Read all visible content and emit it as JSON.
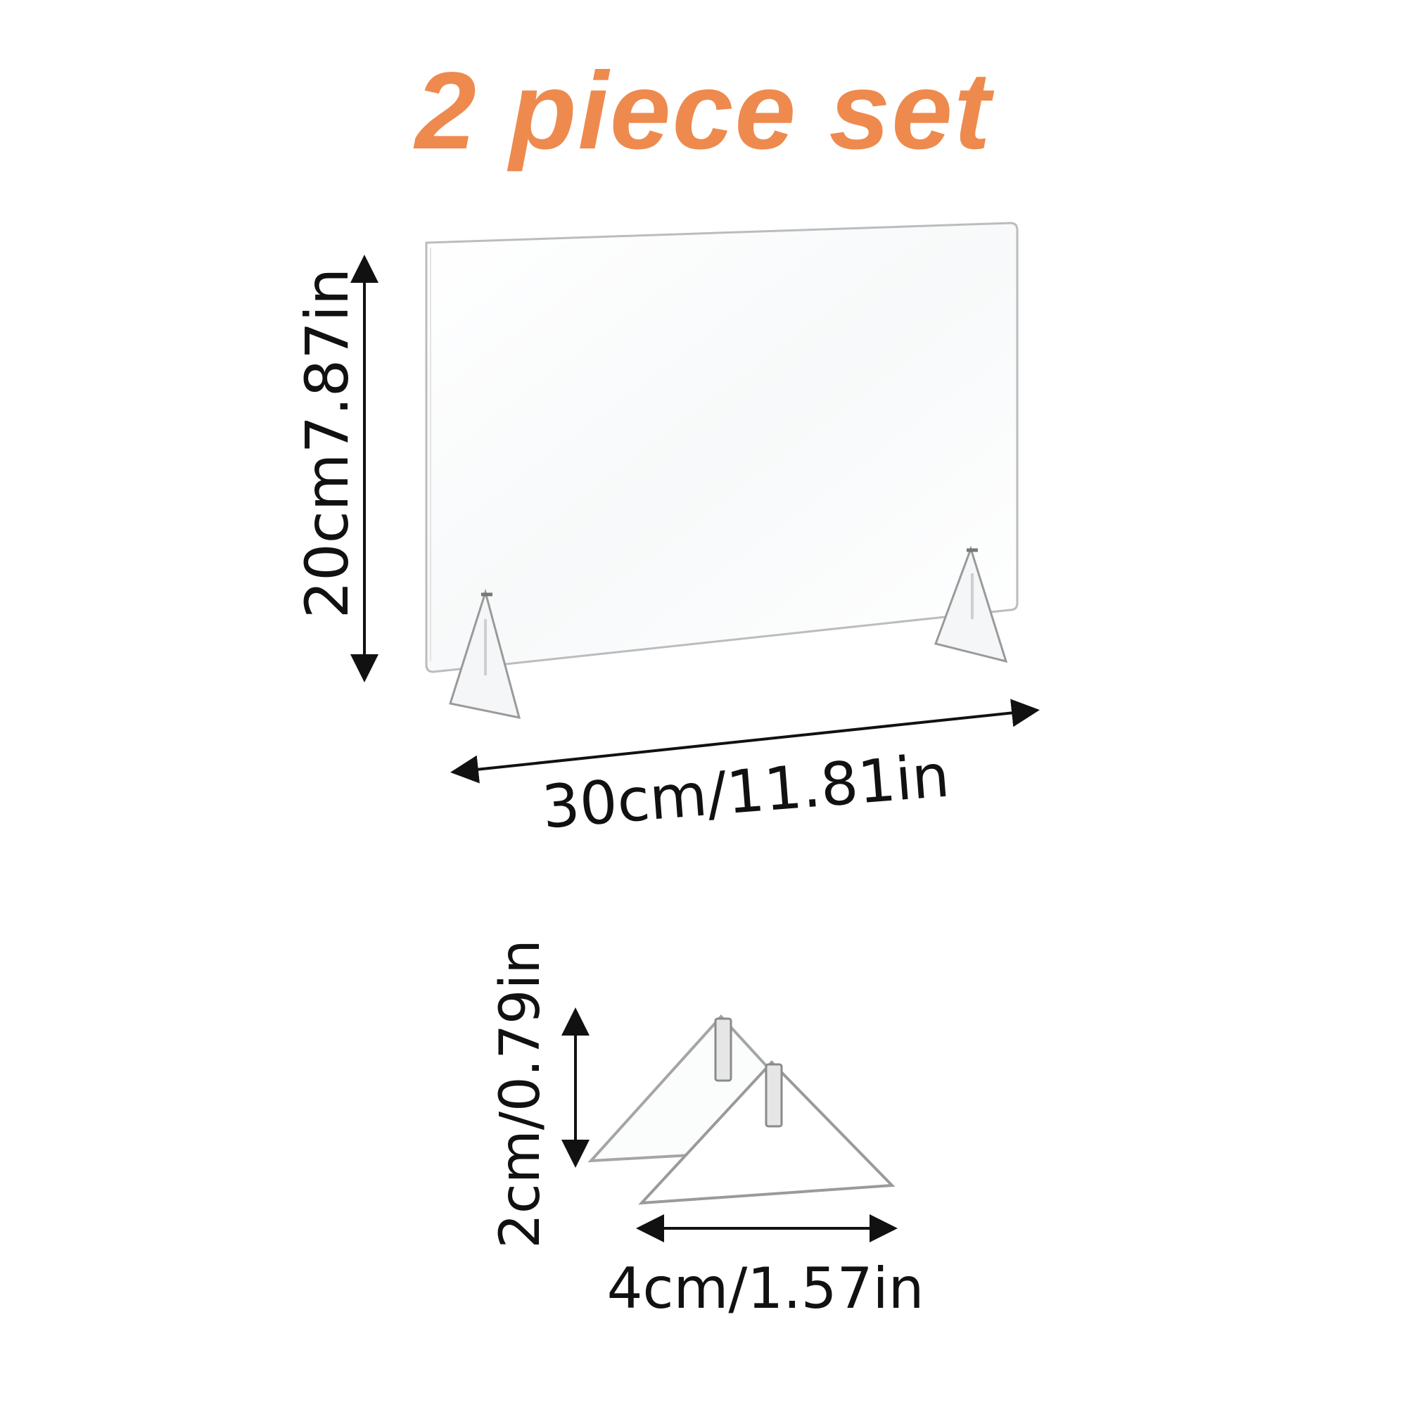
{
  "title": "2 piece set",
  "colors": {
    "accent": "#ee8a4e",
    "line": "#111111",
    "acrylic_edge": "#b8b8b8"
  },
  "panel": {
    "height_label": "20cm7.87in",
    "width_label": "30cm/11.81in"
  },
  "foot": {
    "height_label": "2cm/0.79in",
    "width_label": "4cm/1.57in"
  }
}
